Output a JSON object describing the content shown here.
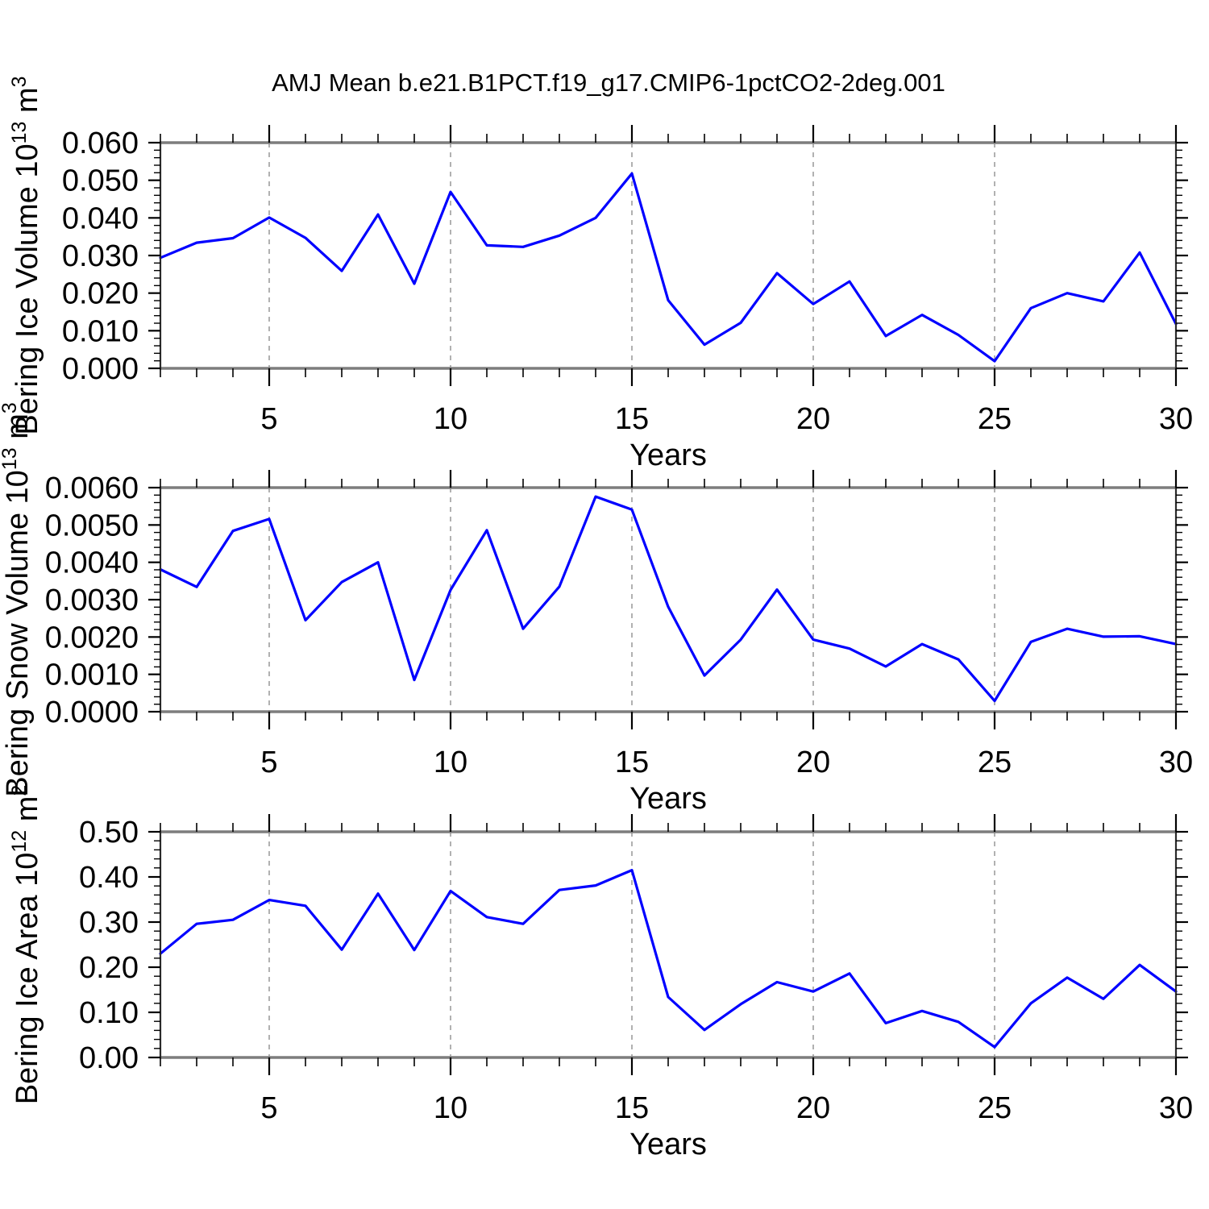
{
  "page": {
    "title": "AMJ Mean b.e21.B1PCT.f19_g17.CMIP6-1pctCO2-2deg.001"
  },
  "chart_data": [
    {
      "type": "line",
      "name": "bering-ice-volume",
      "ylabel_plain": "Bering Ice Volume 10^13 m^3",
      "ylabel_parts": [
        {
          "text": "Bering Ice Volume 10"
        },
        {
          "text": "13",
          "sup": true
        },
        {
          "text": " m"
        },
        {
          "text": "3",
          "sup": true
        }
      ],
      "xlabel": "Years",
      "x": [
        2,
        3,
        4,
        5,
        6,
        7,
        8,
        9,
        10,
        11,
        12,
        13,
        14,
        15,
        16,
        17,
        18,
        19,
        20,
        21,
        22,
        23,
        24,
        25,
        26,
        27,
        28,
        29,
        30
      ],
      "values": [
        0.0294,
        0.0334,
        0.0346,
        0.0401,
        0.0347,
        0.0259,
        0.0409,
        0.0225,
        0.0469,
        0.0327,
        0.0323,
        0.0353,
        0.04,
        0.0518,
        0.0181,
        0.0063,
        0.0121,
        0.0253,
        0.0171,
        0.0231,
        0.0086,
        0.0142,
        0.0089,
        0.0019,
        0.016,
        0.02,
        0.0178,
        0.0308,
        0.0118
      ],
      "xlim": [
        2,
        30
      ],
      "ylim": [
        0.0,
        0.06
      ],
      "xticks": [
        5,
        10,
        15,
        20,
        25,
        30
      ],
      "x_minor_step": 1,
      "yticks": [
        0.0,
        0.01,
        0.02,
        0.03,
        0.04,
        0.05,
        0.06
      ],
      "ytick_labels": [
        "0.000",
        "0.010",
        "0.020",
        "0.030",
        "0.040",
        "0.050",
        "0.060"
      ],
      "y_minor_divisions": 5,
      "gridlines_x": [
        5,
        10,
        15,
        20,
        25
      ],
      "grid_style": "vertical-dashed",
      "line_color": "#0000ff"
    },
    {
      "type": "line",
      "name": "bering-snow-volume",
      "ylabel_plain": "Bering Snow Volume 10^13 m^3",
      "ylabel_parts": [
        {
          "text": "Bering Snow Volume 10"
        },
        {
          "text": "13",
          "sup": true
        },
        {
          "text": " m"
        },
        {
          "text": "3",
          "sup": true
        }
      ],
      "xlabel": "Years",
      "x": [
        2,
        3,
        4,
        5,
        6,
        7,
        8,
        9,
        10,
        11,
        12,
        13,
        14,
        15,
        16,
        17,
        18,
        19,
        20,
        21,
        22,
        23,
        24,
        25,
        26,
        27,
        28,
        29,
        30
      ],
      "values": [
        0.00381,
        0.00334,
        0.00484,
        0.00516,
        0.00245,
        0.00347,
        0.004,
        0.00085,
        0.00326,
        0.00486,
        0.00222,
        0.00335,
        0.00576,
        0.00541,
        0.00281,
        0.00097,
        0.00193,
        0.00327,
        0.00193,
        0.00169,
        0.00121,
        0.00181,
        0.0014,
        0.00029,
        0.00187,
        0.00222,
        0.00201,
        0.00202,
        0.00181
      ],
      "xlim": [
        2,
        30
      ],
      "ylim": [
        0.0,
        0.006
      ],
      "xticks": [
        5,
        10,
        15,
        20,
        25,
        30
      ],
      "x_minor_step": 1,
      "yticks": [
        0.0,
        0.001,
        0.002,
        0.003,
        0.004,
        0.005,
        0.006
      ],
      "ytick_labels": [
        "0.0000",
        "0.0010",
        "0.0020",
        "0.0030",
        "0.0040",
        "0.0050",
        "0.0060"
      ],
      "y_minor_divisions": 5,
      "gridlines_x": [
        5,
        10,
        15,
        20,
        25
      ],
      "grid_style": "vertical-dashed",
      "line_color": "#0000ff"
    },
    {
      "type": "line",
      "name": "bering-ice-area",
      "ylabel_plain": "Bering Ice Area 10^12 m^2",
      "ylabel_parts": [
        {
          "text": "Bering Ice Area 10"
        },
        {
          "text": "12",
          "sup": true
        },
        {
          "text": " m"
        },
        {
          "text": "2",
          "sup": true
        }
      ],
      "xlabel": "Years",
      "x": [
        2,
        3,
        4,
        5,
        6,
        7,
        8,
        9,
        10,
        11,
        12,
        13,
        14,
        15,
        16,
        17,
        18,
        19,
        20,
        21,
        22,
        23,
        24,
        25,
        26,
        27,
        28,
        29,
        30
      ],
      "values": [
        0.23,
        0.296,
        0.305,
        0.349,
        0.336,
        0.239,
        0.363,
        0.238,
        0.369,
        0.311,
        0.296,
        0.371,
        0.381,
        0.415,
        0.134,
        0.061,
        0.118,
        0.167,
        0.146,
        0.186,
        0.076,
        0.103,
        0.079,
        0.023,
        0.12,
        0.177,
        0.13,
        0.205,
        0.146
      ],
      "xlim": [
        2,
        30
      ],
      "ylim": [
        0.0,
        0.5
      ],
      "xticks": [
        5,
        10,
        15,
        20,
        25,
        30
      ],
      "x_minor_step": 1,
      "yticks": [
        0.0,
        0.1,
        0.2,
        0.3,
        0.4,
        0.5
      ],
      "ytick_labels": [
        "0.00",
        "0.10",
        "0.20",
        "0.30",
        "0.40",
        "0.50"
      ],
      "y_minor_divisions": 5,
      "gridlines_x": [
        5,
        10,
        15,
        20,
        25
      ],
      "grid_style": "vertical-dashed",
      "line_color": "#0000ff"
    }
  ],
  "colors": {
    "line": "#0000ff",
    "grid": "#909090",
    "frame_horizontal": "#7d7d7d",
    "frame_vertical": "#2b2b2b",
    "tick": "#000000",
    "text": "#000000",
    "background": "#ffffff"
  }
}
